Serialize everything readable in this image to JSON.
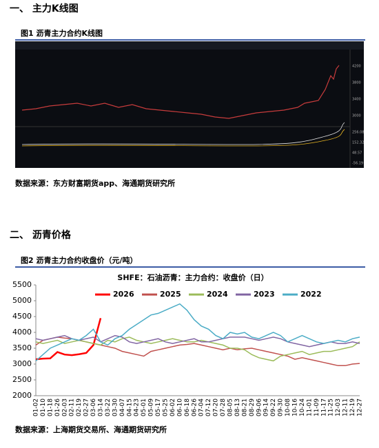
{
  "section1": {
    "heading": "一、  主力K线图",
    "figure_caption": "图1   沥青主力合约K线图",
    "source": "数据来源：东方财富期货app、海通期货研究所",
    "screenshot": {
      "price_axis": [
        "4200",
        "3800",
        "3400",
        "3000"
      ],
      "macd_axis": [
        "256.08",
        "152.32",
        "48.57",
        "-56.19"
      ]
    }
  },
  "section2": {
    "heading": "二、   沥青价格",
    "figure_caption": "图2   沥青主力合约收盘价（元/吨）",
    "source": "数据来源：上海期货交易所、海通期货研究所"
  },
  "chart_data": {
    "type": "line",
    "title": "SHFE：石油沥青：主力合约：收盘价（日）",
    "categories": [
      "01-02",
      "01-10",
      "01-18",
      "01-26",
      "02-03",
      "02-11",
      "02-19",
      "02-27",
      "03-06",
      "03-14",
      "03-22",
      "03-30",
      "04-07",
      "04-15",
      "04-23",
      "05-01",
      "05-09",
      "05-17",
      "05-25",
      "06-02",
      "06-10",
      "06-18",
      "06-26",
      "07-04",
      "07-12",
      "07-20",
      "07-28",
      "08-05",
      "08-13",
      "08-21",
      "08-29",
      "09-06",
      "09-14",
      "09-22",
      "09-30",
      "10-08",
      "10-16",
      "10-24",
      "11-01",
      "11-09",
      "11-17",
      "11-25",
      "12-03",
      "12-11",
      "12-19",
      "12-27"
    ],
    "series": [
      {
        "name": "2026",
        "color": "#ff0000",
        "values": [
          3150,
          3170,
          3180,
          3380,
          3300,
          3280,
          3310,
          3350,
          3600,
          4450,
          null,
          null,
          null,
          null,
          null,
          null,
          null,
          null,
          null,
          null,
          null,
          null,
          null,
          null,
          null,
          null,
          null,
          null,
          null,
          null,
          null,
          null,
          null,
          null,
          null,
          null,
          null,
          null,
          null,
          null,
          null,
          null,
          null,
          null,
          null,
          null
        ]
      },
      {
        "name": "2025",
        "color": "#c0504d",
        "values": [
          3600,
          3750,
          3800,
          3850,
          3820,
          3800,
          3750,
          3700,
          3650,
          3600,
          3550,
          3500,
          3400,
          3350,
          3300,
          3250,
          3400,
          3450,
          3500,
          3550,
          3600,
          3620,
          3650,
          3600,
          3550,
          3500,
          3450,
          3500,
          3450,
          3480,
          3500,
          3450,
          3400,
          3350,
          3300,
          3250,
          3150,
          3200,
          3150,
          3100,
          3050,
          3000,
          2950,
          2950,
          3000,
          3020
        ]
      },
      {
        "name": "2024",
        "color": "#9bbb59",
        "values": [
          3700,
          3650,
          3700,
          3750,
          3650,
          3700,
          3750,
          3700,
          3650,
          3600,
          3750,
          3700,
          3800,
          3850,
          3750,
          3700,
          3650,
          3700,
          3750,
          3800,
          3750,
          3700,
          3700,
          3750,
          3700,
          3650,
          3600,
          3500,
          3500,
          3450,
          3300,
          3200,
          3150,
          3100,
          3250,
          3300,
          3350,
          3400,
          3300,
          3350,
          3400,
          3400,
          3450,
          3500,
          3550,
          3700
        ]
      },
      {
        "name": "2023",
        "color": "#8064a2",
        "values": [
          3800,
          3750,
          3800,
          3850,
          3900,
          3800,
          3750,
          3800,
          3850,
          3700,
          3800,
          3900,
          3850,
          3700,
          3650,
          3700,
          3750,
          3800,
          3700,
          3650,
          3700,
          3750,
          3800,
          3700,
          3700,
          3750,
          3800,
          3850,
          3850,
          3850,
          3800,
          3750,
          3800,
          3850,
          3800,
          3700,
          3650,
          3600,
          3550,
          3600,
          3650,
          3700,
          3650,
          3650,
          3700,
          3650
        ]
      },
      {
        "name": "2022",
        "color": "#4bacc6",
        "values": [
          3100,
          3300,
          3500,
          3600,
          3700,
          3800,
          3750,
          3900,
          4100,
          3700,
          3600,
          3800,
          3900,
          4100,
          4250,
          4400,
          4550,
          4600,
          4700,
          4800,
          4900,
          4700,
          4400,
          4200,
          4100,
          3900,
          3800,
          4000,
          3950,
          4000,
          3850,
          3800,
          3900,
          4000,
          3900,
          3700,
          3800,
          3900,
          3800,
          3700,
          3650,
          3700,
          3750,
          3700,
          3800,
          3850
        ]
      }
    ],
    "ylim": [
      2000,
      5500
    ],
    "yticks": [
      2000,
      2500,
      3000,
      3500,
      4000,
      4500,
      5000,
      5500
    ],
    "legend": "top"
  }
}
